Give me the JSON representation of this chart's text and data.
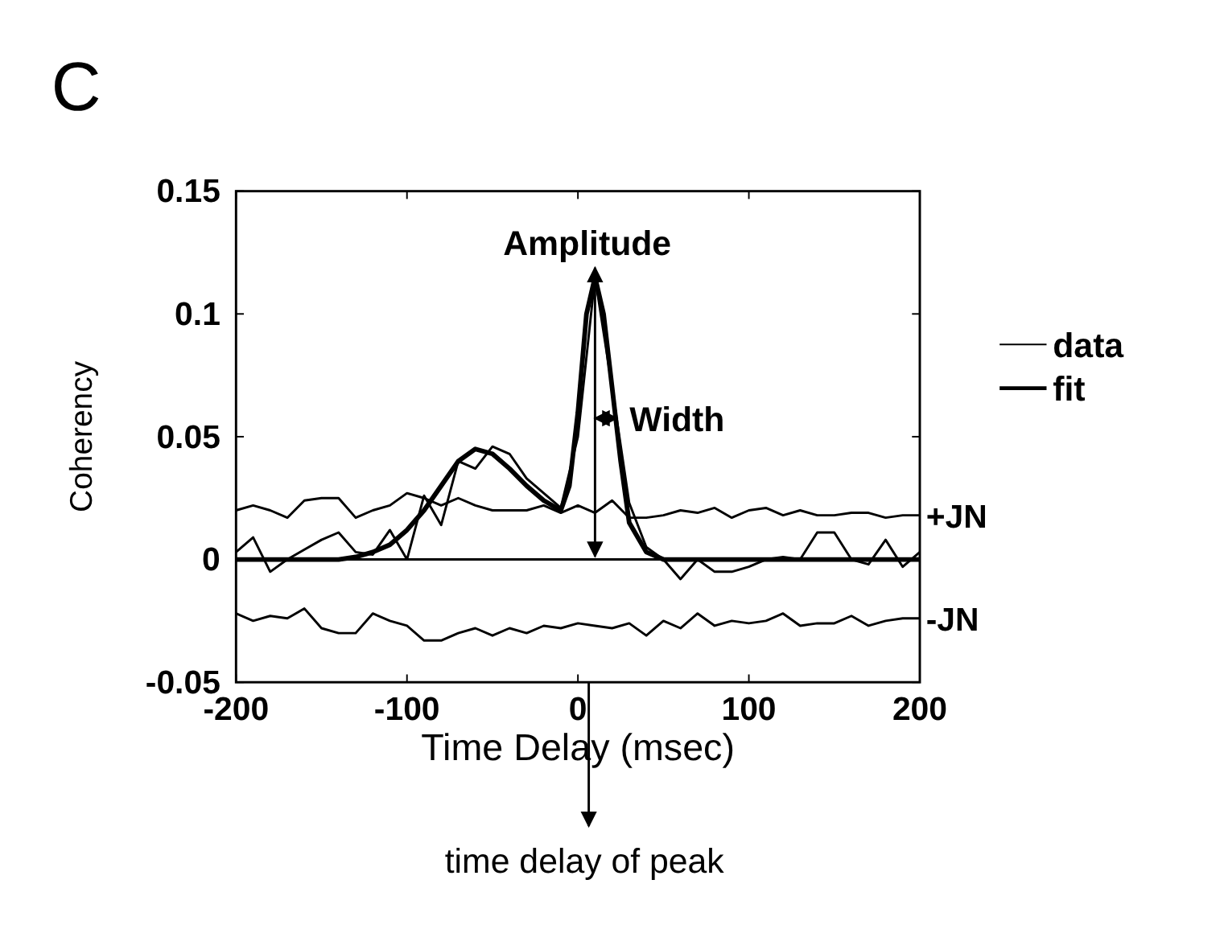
{
  "chart_data": {
    "type": "line",
    "title": "C",
    "xlabel": "Time Delay (msec)",
    "ylabel": "Coherency",
    "x": [
      -200,
      -190,
      -180,
      -170,
      -160,
      -150,
      -140,
      -130,
      -120,
      -110,
      -100,
      -90,
      -80,
      -70,
      -60,
      -50,
      -40,
      -30,
      -20,
      -10,
      0,
      10,
      20,
      30,
      40,
      50,
      60,
      70,
      80,
      90,
      100,
      110,
      120,
      130,
      140,
      150,
      160,
      170,
      180,
      190,
      200
    ],
    "series": [
      {
        "name": "data",
        "color": "#000000",
        "values": [
          0.003,
          0.009,
          -0.005,
          0.0,
          0.004,
          0.008,
          0.011,
          0.003,
          0.002,
          0.012,
          0.0,
          0.026,
          0.014,
          0.04,
          0.037,
          0.046,
          0.043,
          0.033,
          0.027,
          0.021,
          0.05,
          0.115,
          0.07,
          0.023,
          0.005,
          0.0,
          -0.008,
          0.0,
          -0.005,
          -0.005,
          -0.003,
          0.0,
          0.001,
          0.0,
          0.011,
          0.011,
          0.0,
          -0.002,
          0.008,
          -0.003,
          0.003
        ]
      },
      {
        "name": "fit",
        "color": "#000000",
        "x": [
          -200,
          -140,
          -130,
          -120,
          -110,
          -100,
          -90,
          -80,
          -70,
          -60,
          -50,
          -40,
          -30,
          -20,
          -10,
          -5,
          0,
          5,
          10,
          15,
          20,
          25,
          30,
          40,
          50,
          200
        ],
        "values": [
          0,
          0,
          0.001,
          0.003,
          0.006,
          0.012,
          0.02,
          0.03,
          0.04,
          0.045,
          0.043,
          0.037,
          0.03,
          0.024,
          0.02,
          0.03,
          0.06,
          0.1,
          0.115,
          0.1,
          0.07,
          0.04,
          0.015,
          0.003,
          0,
          0
        ]
      },
      {
        "name": "+JN",
        "color": "#000000",
        "values": [
          0.02,
          0.022,
          0.02,
          0.017,
          0.024,
          0.025,
          0.025,
          0.017,
          0.02,
          0.022,
          0.027,
          0.025,
          0.022,
          0.025,
          0.022,
          0.02,
          0.02,
          0.02,
          0.022,
          0.019,
          0.022,
          0.019,
          0.024,
          0.017,
          0.017,
          0.018,
          0.02,
          0.019,
          0.021,
          0.017,
          0.02,
          0.021,
          0.018,
          0.02,
          0.018,
          0.018,
          0.019,
          0.019,
          0.017,
          0.018,
          0.018
        ]
      },
      {
        "name": "-JN",
        "color": "#000000",
        "values": [
          -0.022,
          -0.025,
          -0.023,
          -0.024,
          -0.02,
          -0.028,
          -0.03,
          -0.03,
          -0.022,
          -0.025,
          -0.027,
          -0.033,
          -0.033,
          -0.03,
          -0.028,
          -0.031,
          -0.028,
          -0.03,
          -0.027,
          -0.028,
          -0.026,
          -0.027,
          -0.028,
          -0.026,
          -0.031,
          -0.025,
          -0.028,
          -0.022,
          -0.027,
          -0.025,
          -0.026,
          -0.025,
          -0.022,
          -0.027,
          -0.026,
          -0.026,
          -0.023,
          -0.027,
          -0.025,
          -0.024,
          -0.024
        ]
      }
    ],
    "xlim": [
      -200,
      200
    ],
    "xticks": [
      -200,
      -100,
      0,
      100,
      200
    ],
    "ylim": [
      -0.05,
      0.15
    ],
    "yticks": [
      -0.05,
      0,
      0.05,
      0.1,
      0.15
    ],
    "ref_lines": [
      {
        "axis": "y",
        "value": 0
      }
    ],
    "annotations": [
      "Amplitude",
      "Width",
      "time delay of peak"
    ],
    "legend": "right",
    "grid": false,
    "line_style": "solid"
  }
}
